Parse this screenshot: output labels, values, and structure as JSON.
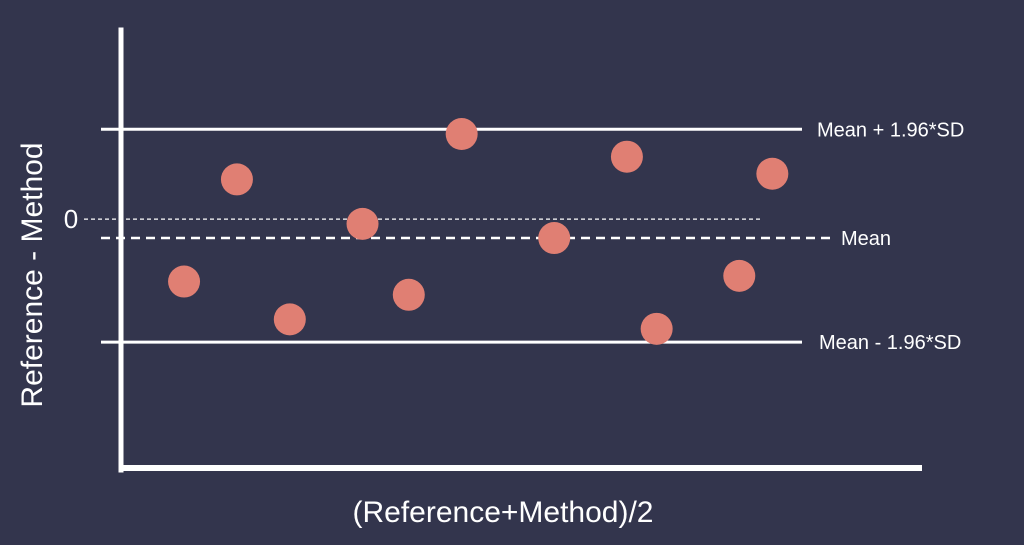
{
  "chart_data": {
    "type": "scatter",
    "title": "",
    "xlabel": "(Reference+Method)/2",
    "ylabel": "Reference - Method",
    "xlim": [
      0,
      10
    ],
    "ylim": [
      -2.6,
      2.0
    ],
    "zero_tick_label": "0",
    "grid": false,
    "legend": "none",
    "points": [
      {
        "x": 0.5,
        "y": -0.66
      },
      {
        "x": 1.3,
        "y": 0.42
      },
      {
        "x": 2.1,
        "y": -1.06
      },
      {
        "x": 3.2,
        "y": -0.05
      },
      {
        "x": 3.9,
        "y": -0.8
      },
      {
        "x": 4.7,
        "y": 0.9
      },
      {
        "x": 6.1,
        "y": -0.2
      },
      {
        "x": 7.2,
        "y": 0.66
      },
      {
        "x": 7.65,
        "y": -1.16
      },
      {
        "x": 8.9,
        "y": -0.6
      },
      {
        "x": 9.4,
        "y": 0.48
      }
    ],
    "reference_lines": [
      {
        "key": "upper",
        "label": "Mean + 1.96*SD",
        "y": 0.95,
        "style": "solid"
      },
      {
        "key": "mean",
        "label": "Mean",
        "y": -0.2,
        "style": "dashed"
      },
      {
        "key": "lower",
        "label": "Mean - 1.96*SD",
        "y": -1.3,
        "style": "solid"
      },
      {
        "key": "zero",
        "label": "",
        "y": 0,
        "style": "dotted"
      }
    ],
    "colors": {
      "background": "#33354d",
      "axis": "#ffffff",
      "point": "#e07f73"
    }
  }
}
